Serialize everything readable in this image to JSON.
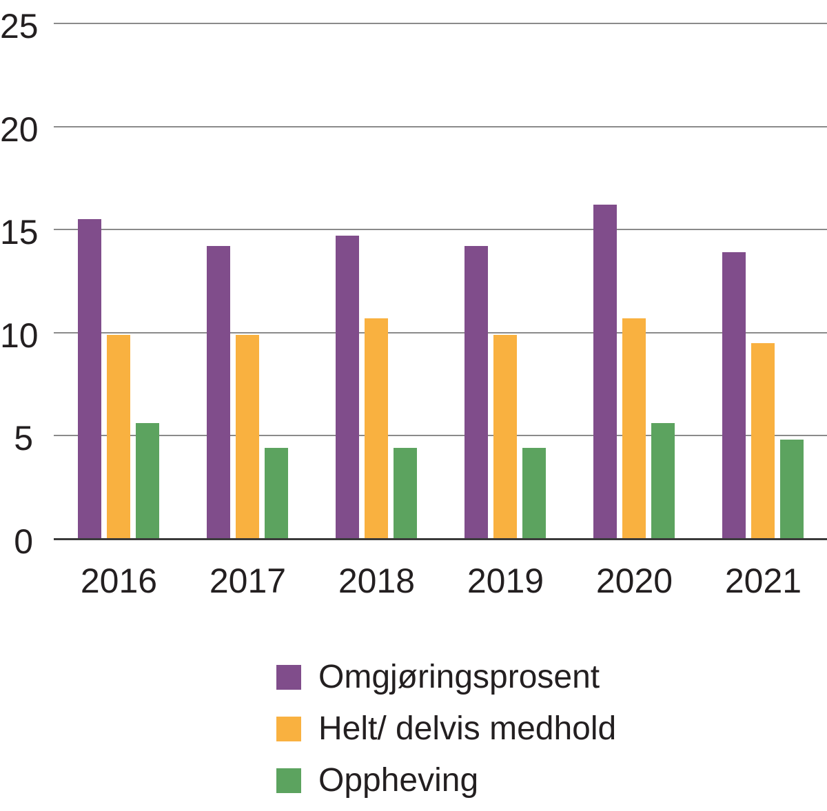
{
  "chart_data": {
    "type": "bar",
    "title": "",
    "xlabel": "",
    "ylabel": "",
    "categories": [
      "2016",
      "2017",
      "2018",
      "2019",
      "2020",
      "2021"
    ],
    "series": [
      {
        "name": "Omgjøringsprosent",
        "color": "#804D8B",
        "values": [
          15.5,
          14.2,
          14.7,
          14.2,
          16.2,
          13.9
        ]
      },
      {
        "name": "Helt/ delvis medhold",
        "color": "#F9B140",
        "values": [
          9.9,
          9.9,
          10.7,
          9.9,
          10.7,
          9.5
        ]
      },
      {
        "name": "Oppheving",
        "color": "#5CA35F",
        "values": [
          5.6,
          4.4,
          4.4,
          4.4,
          5.6,
          4.8
        ]
      }
    ],
    "ylim": [
      0,
      25
    ],
    "yticks": [
      0,
      5,
      10,
      15,
      20,
      25
    ],
    "grid": true,
    "legend_position": "bottom"
  },
  "colors": {
    "background": "#ffffff",
    "gridline": "#8a8a8a",
    "axis_line": "#3a3a3a",
    "text": "#231f20"
  }
}
